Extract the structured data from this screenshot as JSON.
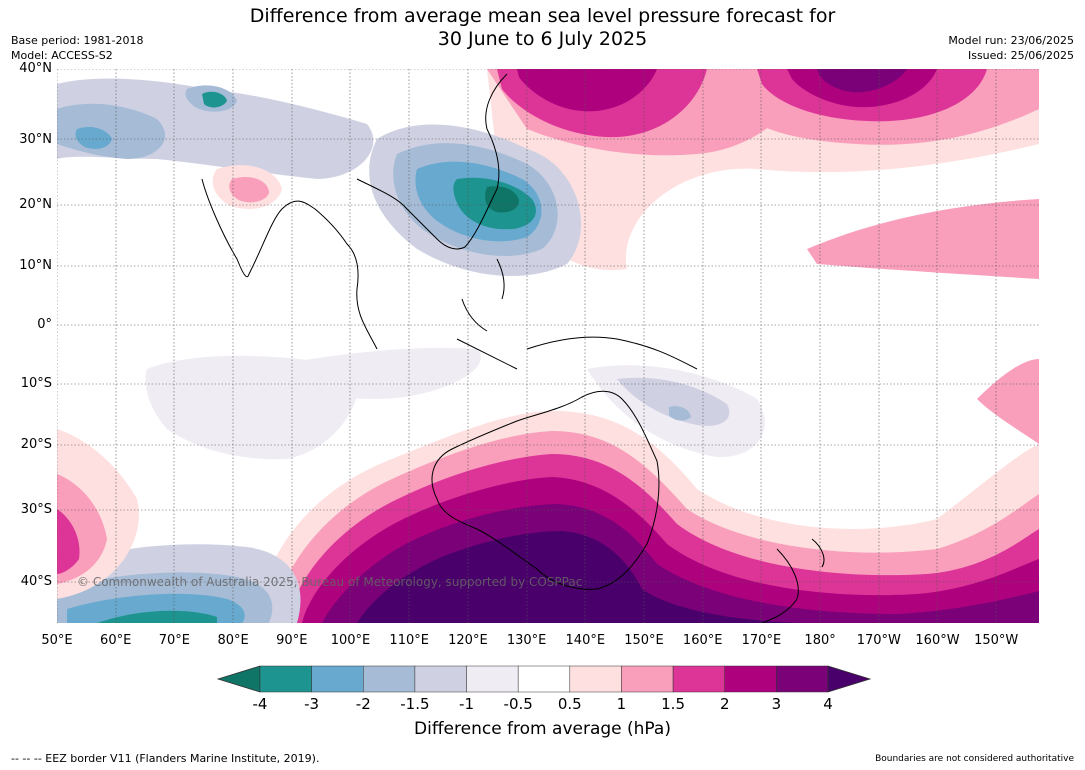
{
  "title_line1": "Difference from average mean sea level pressure forecast for",
  "title_line2": "30 June to 6 July 2025",
  "base_period": "Base period: 1981-2018",
  "model": "Model: ACCESS-S2",
  "model_run": "Model run: 23/06/2025",
  "issued": "Issued: 25/06/2025",
  "lat_labels": [
    "40°N",
    "30°N",
    "20°N",
    "10°N",
    "0°",
    "10°S",
    "20°S",
    "30°S",
    "40°S"
  ],
  "lon_labels": [
    "50°E",
    "60°E",
    "70°E",
    "80°E",
    "90°E",
    "100°E",
    "110°E",
    "120°E",
    "130°E",
    "140°E",
    "150°E",
    "160°E",
    "170°E",
    "180°",
    "170°W",
    "160°W",
    "150°W"
  ],
  "copyright": "© Commonwealth of Australia 2025, Bureau of Meteorology, supported by COSPPac",
  "colorbar": {
    "ticks": [
      "-4",
      "-3",
      "-2",
      "-1.5",
      "-1",
      "-0.5",
      "0.5",
      "1",
      "1.5",
      "2",
      "3",
      "4"
    ],
    "colors": [
      "#0f7567",
      "#1e9490",
      "#67a9cf",
      "#a6bcd6",
      "#cfd1e3",
      "#f0ecf4",
      "#ffffff",
      "#fde0df",
      "#f99fbc",
      "#dd3497",
      "#ae017e",
      "#7a0177",
      "#49006a"
    ],
    "label": "Difference from average (hPa)"
  },
  "eez_note": "--  --  -- EEZ border V11 (Flanders Marine Institute, 2019).",
  "boundary_note": "Boundaries are not considered authoritative"
}
